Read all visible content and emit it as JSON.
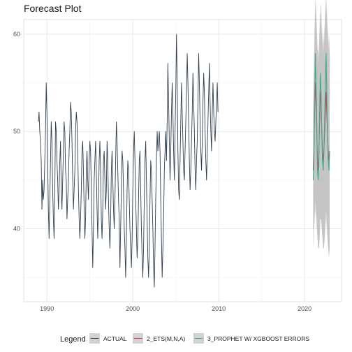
{
  "chart_data": {
    "type": "line",
    "title": "Forecast Plot",
    "xlabel": "",
    "ylabel": "",
    "xlim": [
      1987.3,
      2024.3
    ],
    "ylim": [
      32.5,
      61.5
    ],
    "x_ticks": [
      1990,
      2000,
      2010,
      2020
    ],
    "x_tick_labels": [
      "1990",
      "2000",
      "2010",
      "2020"
    ],
    "y_ticks": [
      40,
      50,
      60
    ],
    "y_tick_labels": [
      "40",
      "50",
      "60"
    ],
    "grid": true,
    "legend": {
      "title": "Legend",
      "position": "bottom"
    },
    "series": [
      {
        "name": "ACTUAL",
        "color": "#2f3f4f",
        "start": 1989.0,
        "step": 0.0833333,
        "values": [
          51,
          52,
          50,
          49,
          47,
          42,
          45,
          43,
          44,
          47,
          50,
          55,
          52,
          47,
          42,
          39,
          43,
          47,
          51,
          49,
          44,
          41,
          39,
          44,
          51,
          50,
          47,
          45,
          42,
          44,
          47,
          49,
          44,
          42,
          45,
          48,
          51,
          50,
          46,
          45,
          41,
          43,
          45,
          48,
          50,
          53,
          52,
          49,
          45,
          42,
          44,
          46,
          50,
          52,
          51,
          48,
          44,
          41,
          39,
          41,
          44,
          48,
          49,
          46,
          42,
          39,
          41,
          46,
          48,
          45,
          43,
          47,
          49,
          48,
          44,
          40,
          36,
          40,
          45,
          47,
          49,
          46,
          42,
          39,
          43,
          47,
          49,
          46,
          41,
          39,
          42,
          47,
          48,
          45,
          42,
          44,
          49,
          47,
          43,
          40,
          38,
          41,
          46,
          48,
          45,
          42,
          40,
          43,
          47,
          51,
          49,
          46,
          43,
          41,
          36,
          40,
          44,
          48,
          47,
          44,
          40,
          38,
          35,
          39,
          44,
          47,
          46,
          43,
          40,
          38,
          36,
          39,
          44,
          48,
          50,
          47,
          43,
          40,
          37,
          39,
          43,
          47,
          48,
          44,
          40,
          37,
          35,
          38,
          43,
          47,
          49,
          45,
          41,
          37,
          35,
          38,
          43,
          47,
          46,
          43,
          40,
          36,
          34,
          38,
          43,
          47,
          50,
          48,
          49,
          50,
          48,
          43,
          39,
          35,
          38,
          41,
          46,
          48,
          50,
          47,
          51,
          57,
          53,
          49,
          45,
          48,
          52,
          55,
          52,
          48,
          45,
          50,
          54,
          60,
          55,
          48,
          44,
          43,
          47,
          51,
          55,
          52,
          49,
          46,
          45,
          48,
          51,
          54,
          58,
          55,
          51,
          47,
          44,
          46,
          49,
          52,
          56,
          53,
          50,
          46,
          44,
          47,
          49,
          53,
          58,
          55,
          51,
          48,
          46,
          49,
          53,
          56,
          54,
          50,
          47,
          45,
          48,
          51,
          54,
          57,
          53,
          50,
          48,
          52,
          55,
          52,
          50,
          49,
          51,
          53,
          55,
          52
        ]
      },
      {
        "name": "2_ETS(M,N,A)",
        "color": "#d7374e",
        "start": 2021.0,
        "step": 0.0833333,
        "values": [
          46,
          48,
          52,
          55,
          53,
          50,
          47,
          46,
          48,
          51,
          54,
          53,
          50,
          48,
          47,
          48,
          50,
          52,
          54,
          52,
          50,
          48,
          47,
          48
        ],
        "ci_lower": [
          40,
          40,
          41,
          42,
          41,
          40,
          39,
          38,
          38,
          39,
          41,
          41,
          40,
          39,
          38,
          38,
          39,
          40,
          41,
          40,
          39,
          38,
          37,
          38
        ],
        "ci_upper": [
          52,
          56,
          60,
          63,
          62,
          60,
          58,
          57,
          58,
          60,
          62,
          62,
          60,
          59,
          58,
          59,
          60,
          62,
          63,
          62,
          60,
          59,
          58,
          59
        ]
      },
      {
        "name": "3_PROPHET W/ XGBOOST ERRORS",
        "color": "#3fa98a",
        "start": 2021.0,
        "step": 0.0833333,
        "values": [
          45,
          47,
          53,
          58,
          55,
          51,
          46,
          45,
          47,
          52,
          56,
          54,
          50,
          47,
          46,
          48,
          51,
          55,
          58,
          54,
          50,
          47,
          46,
          48
        ],
        "ci_lower": [
          38,
          39,
          41,
          43,
          42,
          41,
          39,
          38,
          38,
          39,
          41,
          41,
          40,
          39,
          38,
          38,
          39,
          41,
          42,
          41,
          39,
          38,
          37,
          38
        ],
        "ci_upper": [
          53,
          57,
          61,
          64,
          63,
          61,
          59,
          58,
          59,
          61,
          63,
          63,
          61,
          60,
          59,
          60,
          61,
          63,
          64,
          63,
          61,
          60,
          59,
          60
        ]
      }
    ]
  }
}
